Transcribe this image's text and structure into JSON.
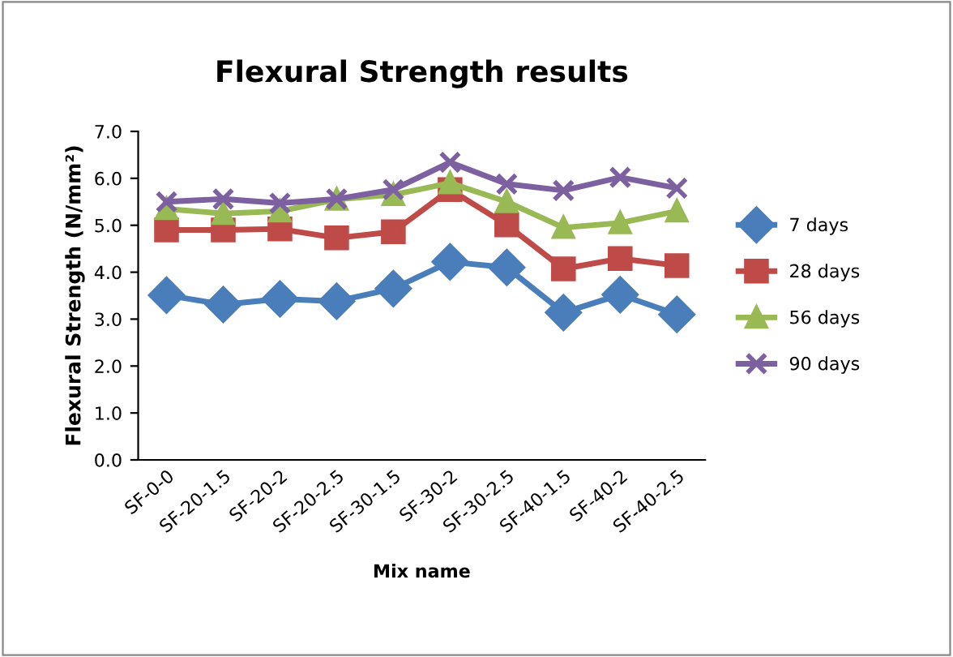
{
  "chart_data": {
    "type": "line",
    "title": "Flexural Strength results",
    "xlabel": "Mix name",
    "ylabel": "Flexural Strength (N/mm²)",
    "categories": [
      "SF-0-0",
      "SF-20-1.5",
      "SF-20-2",
      "SF-20-2.5",
      "SF-30-1.5",
      "SF-30-2",
      "SF-30-2.5",
      "SF-40-1.5",
      "SF-40-2",
      "SF-40-2.5"
    ],
    "series": [
      {
        "name": "7 days",
        "color": "#4a7ebb",
        "marker": "diamond",
        "values": [
          3.51,
          3.31,
          3.43,
          3.38,
          3.65,
          4.22,
          4.1,
          3.14,
          3.52,
          3.1
        ]
      },
      {
        "name": "28 days",
        "color": "#be4b48",
        "marker": "square",
        "values": [
          4.9,
          4.9,
          4.92,
          4.73,
          4.86,
          5.76,
          5.01,
          4.07,
          4.29,
          4.14
        ]
      },
      {
        "name": "56 days",
        "color": "#98b954",
        "marker": "triangle",
        "values": [
          5.35,
          5.25,
          5.3,
          5.55,
          5.65,
          5.9,
          5.5,
          4.95,
          5.05,
          5.3
        ]
      },
      {
        "name": "90 days",
        "color": "#7d60a0",
        "marker": "cross",
        "values": [
          5.5,
          5.56,
          5.47,
          5.56,
          5.76,
          6.34,
          5.88,
          5.74,
          6.02,
          5.79
        ]
      }
    ],
    "ylim": [
      0,
      7
    ],
    "yticks": [
      {
        "value": 0,
        "label": "0.0"
      },
      {
        "value": 1,
        "label": "1.0"
      },
      {
        "value": 2,
        "label": "2.0"
      },
      {
        "value": 3,
        "label": "3.0"
      },
      {
        "value": 4,
        "label": "4.0"
      },
      {
        "value": 5,
        "label": "5.0"
      },
      {
        "value": 6,
        "label": "6.0"
      },
      {
        "value": 7,
        "label": "7.0"
      }
    ],
    "grid": false,
    "legend": "right",
    "line_style": "solid"
  }
}
